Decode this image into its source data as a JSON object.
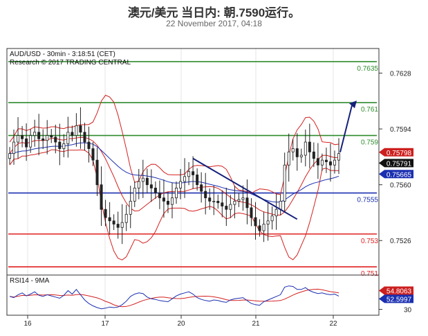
{
  "header": {
    "title": "澳元/美元 当日内: 朝.7590运行。",
    "date": "22 November 2017, 04:18"
  },
  "chart_data": [
    {
      "type": "candlestick",
      "instrument_label": "AUD/USD - 30min - 3:18:51 (CET)",
      "source_label": "Research © 2017 TRADING CENTRAL",
      "y_ticks": [
        "0.7628",
        "0.7594",
        "0.7560",
        "0.7526"
      ],
      "x_ticks": [
        "16",
        "17",
        "20",
        "21",
        "22"
      ],
      "ylim": [
        0.7505,
        0.7643
      ],
      "levels": [
        {
          "value": 0.7635,
          "label": "0.7635",
          "color": "#2e8b2e"
        },
        {
          "value": 0.761,
          "label": "0.761",
          "color": "#2e8b2e"
        },
        {
          "value": 0.759,
          "label": "0.759",
          "color": "#2e8b2e"
        },
        {
          "value": 0.7555,
          "label": "0.7555",
          "color": "#1a2fb0"
        },
        {
          "value": 0.753,
          "label": "0.753",
          "color": "#e02020"
        },
        {
          "value": 0.751,
          "label": "0.751",
          "color": "#e02020"
        }
      ],
      "price_tags": [
        {
          "value": 0.75798,
          "label": "0.75798",
          "color": "#cc1f1f"
        },
        {
          "value": 0.75791,
          "label": "0.75791",
          "color": "#111111"
        },
        {
          "value": 0.75665,
          "label": "0.75665",
          "color": "#1a2fb0"
        }
      ],
      "close": [
        0.7579,
        0.7586,
        0.759,
        0.7588,
        0.7583,
        0.759,
        0.7592,
        0.7588,
        0.7587,
        0.759,
        0.7589,
        0.7586,
        0.7582,
        0.7585,
        0.7592,
        0.759,
        0.7596,
        0.7592,
        0.7586,
        0.7582,
        0.7575,
        0.756,
        0.7545,
        0.754,
        0.7538,
        0.7536,
        0.7534,
        0.7537,
        0.7542,
        0.755,
        0.7558,
        0.7562,
        0.7564,
        0.756,
        0.7558,
        0.7555,
        0.7552,
        0.755,
        0.7548,
        0.7552,
        0.7558,
        0.7562,
        0.7565,
        0.7568,
        0.7566,
        0.756,
        0.7556,
        0.7552,
        0.755,
        0.755,
        0.7549,
        0.7547,
        0.7545,
        0.7548,
        0.755,
        0.7551,
        0.7552,
        0.7546,
        0.754,
        0.7535,
        0.7532,
        0.7536,
        0.7538,
        0.7541,
        0.7545,
        0.755,
        0.7572,
        0.758,
        0.7582,
        0.7577,
        0.7578,
        0.7586,
        0.758,
        0.7576,
        0.7572,
        0.7575,
        0.7574,
        0.7572,
        0.7575,
        0.7579
      ],
      "rsi": {
        "label": "RSI14 - 9MA",
        "y_tick": "30",
        "rsi_value_label": "52.5997",
        "ma_value_label": "54.8063",
        "ylim": [
          20,
          85
        ],
        "values": [
          52,
          50,
          55,
          58,
          53,
          56,
          60,
          54,
          52,
          55,
          53,
          51,
          49,
          54,
          62,
          56,
          64,
          55,
          46,
          40,
          36,
          33,
          31,
          32,
          34,
          33,
          34,
          38,
          44,
          52,
          56,
          58,
          57,
          51,
          48,
          47,
          45,
          44,
          43,
          48,
          53,
          56,
          58,
          60,
          56,
          50,
          47,
          45,
          44,
          46,
          45,
          43,
          42,
          46,
          48,
          49,
          50,
          45,
          40,
          38,
          37,
          43,
          46,
          49,
          52,
          55,
          68,
          70,
          69,
          64,
          64,
          67,
          62,
          59,
          57,
          58,
          56,
          55,
          56,
          52.6
        ]
      }
    }
  ]
}
